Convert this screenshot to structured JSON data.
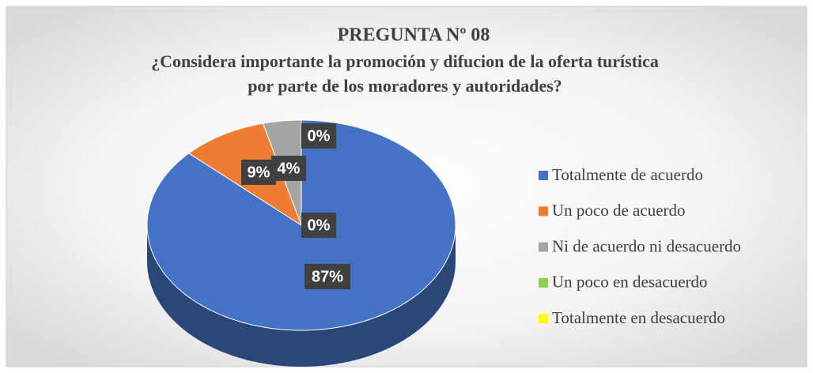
{
  "chart_data": {
    "type": "pie3d",
    "title": "PREGUNTA Nº 08",
    "subtitle": [
      "¿Considera importante la promoción y difucion de la oferta turística",
      "por parte de los moradores y autoridades?"
    ],
    "categories": [
      "Totalmente de acuerdo",
      "Un poco de acuerdo",
      "Ni de acuerdo ni desacuerdo",
      "Un poco en desacuerdo",
      "Totalmente en desacuerdo"
    ],
    "values": [
      87,
      9,
      4,
      0,
      0
    ],
    "value_labels": [
      "87%",
      "9%",
      "4%",
      "0%",
      "0%"
    ],
    "colors": [
      "#4472c4",
      "#ed7d31",
      "#a5a5a5",
      "#8fd14f",
      "#ffff00"
    ],
    "legend": "right"
  }
}
